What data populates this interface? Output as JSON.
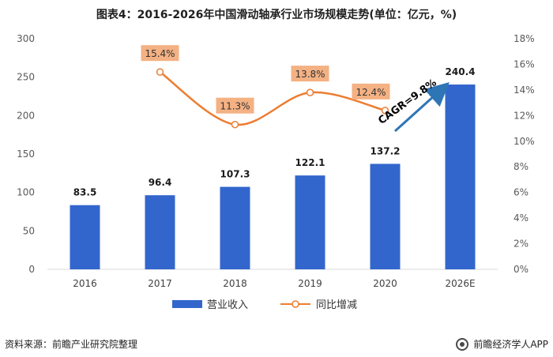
{
  "header": {
    "title": "图表4：2016-2026年中国滑动轴承行业市场规模走势(单位：亿元，%)"
  },
  "chart_data": {
    "type": "bar",
    "categories": [
      "2016",
      "2017",
      "2018",
      "2019",
      "2020",
      "2026E"
    ],
    "series": [
      {
        "name": "营业收入",
        "type": "bar",
        "axis": "left",
        "values": [
          83.5,
          96.4,
          107.3,
          122.1,
          137.2,
          240.4
        ],
        "color": "#3366cc"
      },
      {
        "name": "同比增减",
        "type": "line",
        "axis": "right",
        "values": [
          null,
          15.4,
          11.3,
          13.8,
          12.4,
          null
        ],
        "labels": [
          "",
          "15.4%",
          "11.3%",
          "13.8%",
          "12.4%",
          ""
        ],
        "color": "#ed7d31"
      }
    ],
    "y_left": {
      "range": [
        0,
        300
      ],
      "ticks": [
        0,
        50,
        100,
        150,
        200,
        250,
        300
      ]
    },
    "y_right": {
      "range": [
        0,
        18
      ],
      "ticks": [
        "0%",
        "2%",
        "4%",
        "6%",
        "8%",
        "10%",
        "12%",
        "14%",
        "16%",
        "18%"
      ]
    },
    "annotation": {
      "text": "CAGR=9.8%"
    },
    "legend": {
      "position": "bottom"
    },
    "grid": false
  },
  "colors": {
    "bar": "#3366cc",
    "line": "#ed7d31",
    "label_bg": "#f4b183",
    "arrow": "#2e75b6"
  },
  "footer": {
    "source": "资料来源：前瞻产业研究院整理",
    "brand": "前瞻经济学人APP"
  }
}
